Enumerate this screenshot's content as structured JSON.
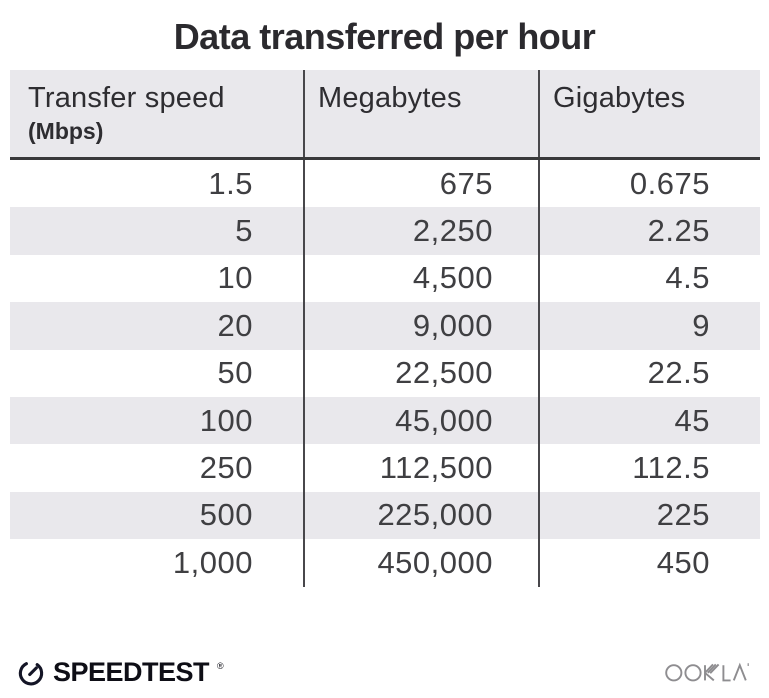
{
  "title": "Data transferred per hour",
  "table": {
    "header": {
      "col1_label": "Transfer speed",
      "col1_sublabel": "(Mbps)",
      "col2_label": "Megabytes",
      "col3_label": "Gigabytes"
    },
    "rows": [
      [
        "1.5",
        "675",
        "0.675"
      ],
      [
        "5",
        "2,250",
        "2.25"
      ],
      [
        "10",
        "4,500",
        "4.5"
      ],
      [
        "20",
        "9,000",
        "9"
      ],
      [
        "50",
        "22,500",
        "22.5"
      ],
      [
        "100",
        "45,000",
        "45"
      ],
      [
        "250",
        "112,500",
        "112.5"
      ],
      [
        "500",
        "225,000",
        "225"
      ],
      [
        "1,000",
        "450,000",
        "450"
      ]
    ]
  },
  "chart_data": {
    "type": "table",
    "title": "Data transferred per hour",
    "columns": [
      "Transfer speed (Mbps)",
      "Megabytes",
      "Gigabytes"
    ],
    "rows": [
      [
        1.5,
        675,
        0.675
      ],
      [
        5,
        2250,
        2.25
      ],
      [
        10,
        4500,
        4.5
      ],
      [
        20,
        9000,
        9
      ],
      [
        50,
        22500,
        22.5
      ],
      [
        100,
        45000,
        45
      ],
      [
        250,
        112500,
        112.5
      ],
      [
        500,
        225000,
        225
      ],
      [
        1000,
        450000,
        450
      ]
    ],
    "layout_hints": {
      "striped_rows": true,
      "stripe_on": "even rows (2nd, 4th, ...)",
      "number_alignment": "right",
      "column_dividers": true
    }
  },
  "footer": {
    "speedtest_label": "SPEEDTEST",
    "speedtest_registered": "®",
    "ookla_label": "OOKLA"
  },
  "colors": {
    "stripe": "#e9e8ec",
    "header_bg": "#e9e8ec",
    "header_rule": "#39393b",
    "divider": "#48474b",
    "title_text": "#2b2a2e",
    "header_text": "#2e2d31",
    "number_text": "#3f3f42",
    "speedtest_black": "#0e0e16",
    "ookla_gray": "#8e8d90"
  }
}
